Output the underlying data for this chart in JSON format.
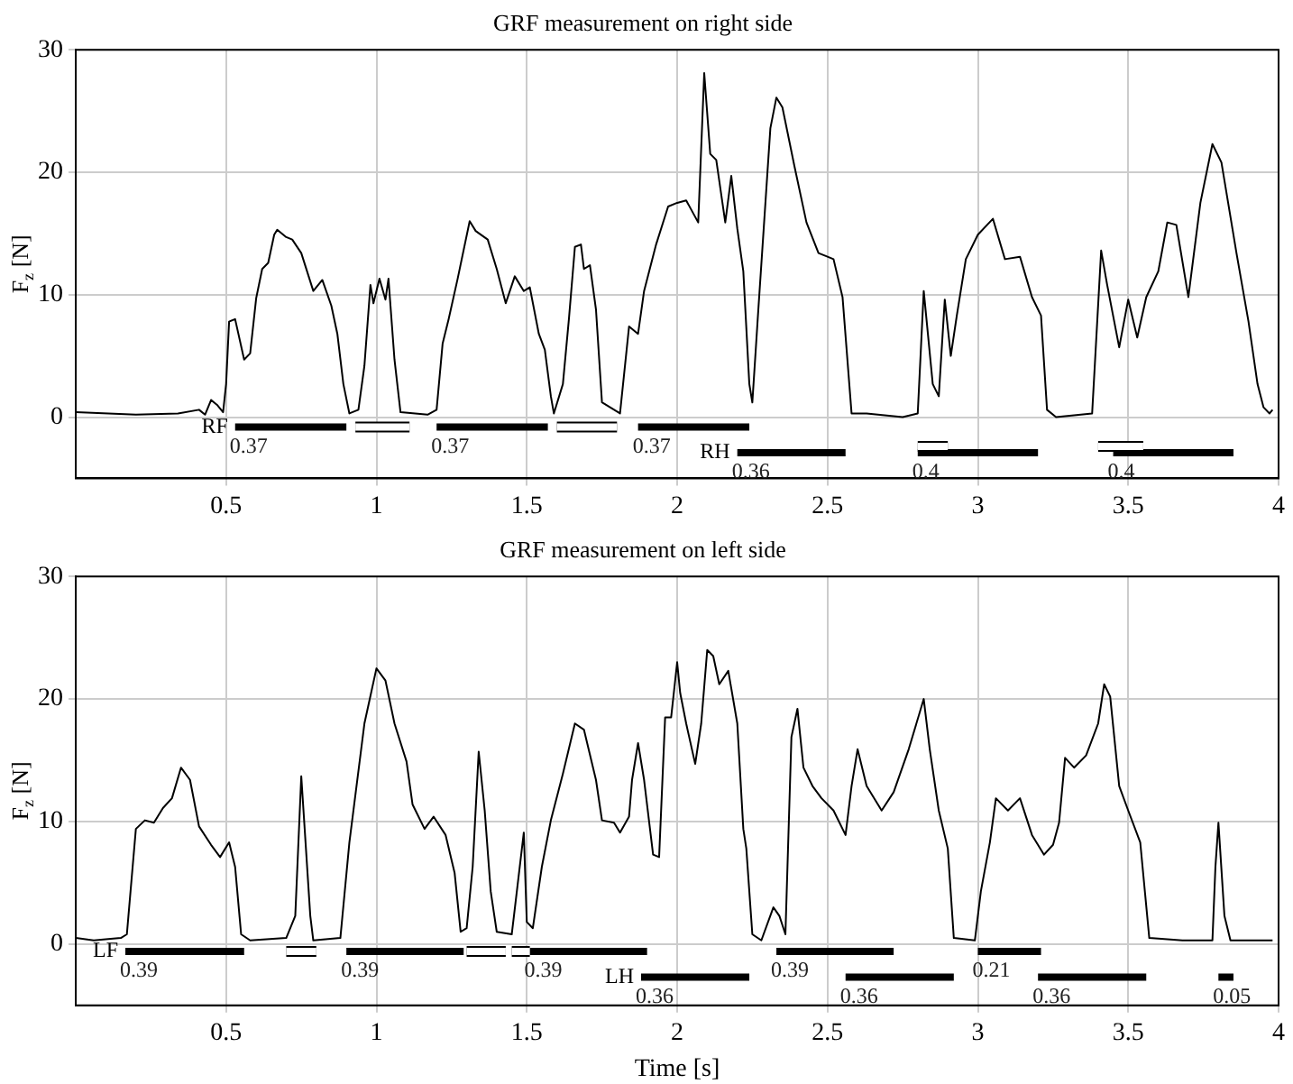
{
  "chart_data": [
    {
      "type": "line",
      "title": "GRF measurement on right side",
      "ylabel": "F$_{z}$ [N]",
      "xlim": [
        0,
        4
      ],
      "xticks": [
        0.5,
        1,
        1.5,
        2,
        2.5,
        3,
        3.5,
        4
      ],
      "ylim": [
        -5,
        30
      ],
      "yticks": [
        0,
        10,
        20,
        30
      ],
      "grid": true,
      "series": [
        {
          "color": "#000000",
          "x": [
            0.0,
            0.2,
            0.34,
            0.41,
            0.43,
            0.45,
            0.47,
            0.49,
            0.5,
            0.51,
            0.53,
            0.56,
            0.58,
            0.6,
            0.62,
            0.64,
            0.66,
            0.67,
            0.7,
            0.72,
            0.75,
            0.79,
            0.82,
            0.85,
            0.87,
            0.89,
            0.91,
            0.94,
            0.96,
            0.98,
            0.99,
            1.01,
            1.03,
            1.04,
            1.06,
            1.08,
            1.17,
            1.2,
            1.22,
            1.24,
            1.27,
            1.31,
            1.33,
            1.37,
            1.4,
            1.43,
            1.46,
            1.49,
            1.51,
            1.54,
            1.56,
            1.58,
            1.59,
            1.62,
            1.64,
            1.66,
            1.68,
            1.69,
            1.71,
            1.73,
            1.75,
            1.81,
            1.84,
            1.87,
            1.89,
            1.93,
            1.97,
            2.0,
            2.03,
            2.07,
            2.09,
            2.11,
            2.13,
            2.16,
            2.18,
            2.2,
            2.22,
            2.24,
            2.25,
            2.27,
            2.31,
            2.33,
            2.35,
            2.39,
            2.43,
            2.47,
            2.5,
            2.52,
            2.55,
            2.58,
            2.63,
            2.75,
            2.8,
            2.82,
            2.85,
            2.87,
            2.89,
            2.91,
            2.93,
            2.96,
            3.0,
            3.05,
            3.09,
            3.14,
            3.18,
            3.21,
            3.23,
            3.26,
            3.38,
            3.41,
            3.43,
            3.47,
            3.5,
            3.53,
            3.56,
            3.6,
            3.63,
            3.66,
            3.7,
            3.74,
            3.78,
            3.81,
            3.86,
            3.9,
            3.93,
            3.95,
            3.97,
            3.98
          ],
          "values": [
            0.4,
            0.2,
            0.3,
            0.6,
            0.2,
            1.4,
            1.0,
            0.4,
            2.7,
            7.8,
            8.0,
            4.7,
            5.2,
            9.7,
            12.1,
            12.6,
            14.9,
            15.3,
            14.7,
            14.5,
            13.4,
            10.3,
            11.2,
            9.1,
            6.8,
            2.7,
            0.3,
            0.6,
            4.2,
            10.8,
            9.3,
            11.3,
            9.6,
            11.3,
            4.7,
            0.4,
            0.2,
            0.6,
            6.0,
            8.0,
            11.3,
            16.0,
            15.2,
            14.5,
            12.1,
            9.3,
            11.5,
            10.3,
            10.6,
            6.8,
            5.5,
            1.7,
            0.3,
            2.7,
            8.0,
            13.9,
            14.1,
            12.1,
            12.4,
            8.8,
            1.2,
            0.3,
            7.4,
            6.8,
            10.3,
            14.1,
            17.2,
            17.5,
            17.7,
            15.9,
            28.1,
            21.5,
            21.0,
            15.9,
            19.7,
            15.4,
            11.9,
            2.7,
            1.2,
            8.8,
            23.6,
            26.1,
            25.3,
            20.5,
            15.9,
            13.4,
            13.1,
            12.9,
            9.8,
            0.3,
            0.3,
            0.0,
            0.3,
            10.3,
            2.7,
            1.7,
            9.6,
            5.0,
            8.3,
            12.9,
            14.9,
            16.2,
            12.9,
            13.1,
            9.8,
            8.3,
            0.6,
            0.0,
            0.3,
            13.6,
            10.8,
            5.7,
            9.6,
            6.5,
            9.8,
            11.9,
            15.9,
            15.7,
            9.8,
            17.5,
            22.3,
            20.8,
            13.4,
            7.8,
            2.7,
            0.8,
            0.3,
            0.6
          ]
        },
        {
          "name": "RF",
          "color": "#000000",
          "x": [
            0.53,
            0.9
          ],
          "values": [
            -0.8,
            -0.8
          ]
        },
        {
          "color": "#ffffff",
          "x": [
            0.93,
            1.11
          ],
          "values": [
            -0.8,
            -0.8
          ]
        },
        {
          "color": "#000000",
          "x": [
            1.2,
            1.57
          ],
          "values": [
            -0.8,
            -0.8
          ]
        },
        {
          "color": "#ffffff",
          "x": [
            1.6,
            1.8
          ],
          "values": [
            -0.8,
            -0.8
          ]
        },
        {
          "color": "#000000",
          "x": [
            1.87,
            2.24
          ],
          "values": [
            -0.8,
            -0.8
          ]
        },
        {
          "name": "RH",
          "color": "#000000",
          "x": [
            2.2,
            2.56
          ],
          "values": [
            -2.9,
            -2.9
          ]
        },
        {
          "color": "#ffffff",
          "x": [
            2.8,
            2.9
          ],
          "values": [
            -2.4,
            -2.4
          ]
        },
        {
          "color": "#000000",
          "x": [
            2.8,
            3.2
          ],
          "values": [
            -2.9,
            -2.9
          ]
        },
        {
          "color": "#ffffff",
          "x": [
            3.4,
            3.55
          ],
          "values": [
            -2.4,
            -2.4
          ]
        },
        {
          "color": "#000000",
          "x": [
            3.45,
            3.85
          ],
          "values": [
            -2.9,
            -2.9
          ]
        }
      ],
      "annotations": [
        {
          "text": "0.37",
          "x": 0.53,
          "y": -0.8
        },
        {
          "text": "0.37",
          "x": 1.2,
          "y": -0.8
        },
        {
          "text": "0.37",
          "x": 1.87,
          "y": -0.8
        },
        {
          "text": "0.36",
          "x": 2.2,
          "y": -2.9
        },
        {
          "text": "0.4",
          "x": 2.8,
          "y": -2.9
        },
        {
          "text": "0.4",
          "x": 3.45,
          "y": -2.9
        }
      ]
    },
    {
      "type": "line",
      "title": "GRF measurement on left side",
      "xlabel": "Time [s]",
      "ylabel": "F$_{z}$ [N]",
      "xlim": [
        0,
        4
      ],
      "xticks": [
        0.5,
        1,
        1.5,
        2,
        2.5,
        3,
        3.5,
        4
      ],
      "ylim": [
        -5,
        30
      ],
      "yticks": [
        0,
        10,
        20,
        30
      ],
      "grid": true,
      "series": [
        {
          "color": "#000000",
          "x": [
            0.0,
            0.06,
            0.1,
            0.15,
            0.17,
            0.2,
            0.23,
            0.26,
            0.29,
            0.32,
            0.35,
            0.38,
            0.41,
            0.45,
            0.48,
            0.51,
            0.53,
            0.55,
            0.58,
            0.7,
            0.73,
            0.75,
            0.78,
            0.79,
            0.88,
            0.91,
            0.96,
            1.0,
            1.03,
            1.06,
            1.1,
            1.12,
            1.16,
            1.19,
            1.23,
            1.26,
            1.28,
            1.3,
            1.32,
            1.34,
            1.36,
            1.38,
            1.4,
            1.45,
            1.49,
            1.5,
            1.52,
            1.55,
            1.58,
            1.62,
            1.66,
            1.69,
            1.73,
            1.75,
            1.79,
            1.81,
            1.84,
            1.85,
            1.87,
            1.89,
            1.92,
            1.94,
            1.96,
            1.98,
            2.0,
            2.01,
            2.03,
            2.06,
            2.08,
            2.1,
            2.12,
            2.14,
            2.17,
            2.2,
            2.22,
            2.23,
            2.25,
            2.28,
            2.32,
            2.34,
            2.36,
            2.38,
            2.4,
            2.42,
            2.45,
            2.48,
            2.52,
            2.56,
            2.58,
            2.6,
            2.63,
            2.68,
            2.72,
            2.77,
            2.82,
            2.84,
            2.87,
            2.9,
            2.92,
            2.99,
            3.01,
            3.04,
            3.06,
            3.1,
            3.14,
            3.18,
            3.22,
            3.25,
            3.27,
            3.29,
            3.32,
            3.36,
            3.4,
            3.42,
            3.44,
            3.47,
            3.5,
            3.54,
            3.57,
            3.68,
            3.78,
            3.79,
            3.8,
            3.82,
            3.84,
            3.98
          ],
          "values": [
            0.5,
            0.3,
            0.4,
            0.5,
            0.8,
            9.4,
            10.1,
            9.9,
            11.1,
            11.9,
            14.4,
            13.4,
            9.6,
            8.1,
            7.1,
            8.3,
            6.3,
            0.8,
            0.3,
            0.5,
            2.3,
            13.7,
            2.3,
            0.3,
            0.5,
            8.3,
            18.0,
            22.5,
            21.5,
            18.0,
            14.9,
            11.4,
            9.4,
            10.4,
            8.9,
            5.8,
            1.0,
            1.3,
            6.3,
            15.7,
            10.9,
            4.3,
            1.0,
            0.8,
            9.1,
            1.8,
            1.3,
            6.3,
            10.1,
            13.9,
            18.0,
            17.5,
            13.4,
            10.1,
            9.9,
            9.1,
            10.4,
            13.4,
            16.4,
            13.4,
            7.3,
            7.1,
            18.5,
            18.5,
            23.0,
            20.5,
            18.0,
            14.7,
            18.0,
            24.0,
            23.5,
            21.2,
            22.3,
            18.0,
            9.4,
            7.8,
            0.8,
            0.3,
            3.0,
            2.3,
            0.8,
            16.9,
            19.2,
            14.4,
            12.9,
            11.9,
            10.9,
            8.9,
            12.9,
            15.9,
            12.9,
            10.9,
            12.4,
            15.9,
            20.0,
            15.9,
            10.9,
            7.8,
            0.5,
            0.3,
            4.3,
            8.3,
            11.9,
            10.9,
            11.9,
            8.9,
            7.3,
            8.1,
            9.9,
            15.2,
            14.4,
            15.4,
            18.0,
            21.2,
            20.2,
            12.9,
            10.9,
            8.3,
            0.5,
            0.3,
            0.3,
            6.3,
            9.9,
            2.3,
            0.3,
            0.3
          ]
        },
        {
          "name": "LF",
          "color": "#000000",
          "x": [
            0.165,
            0.56
          ],
          "values": [
            -0.6,
            -0.6
          ]
        },
        {
          "color": "#ffffff",
          "x": [
            0.7,
            0.8
          ],
          "values": [
            -0.6,
            -0.6
          ]
        },
        {
          "color": "#000000",
          "x": [
            0.9,
            1.29
          ],
          "values": [
            -0.6,
            -0.6
          ]
        },
        {
          "color": "#ffffff",
          "x": [
            1.3,
            1.43
          ],
          "values": [
            -0.6,
            -0.6
          ]
        },
        {
          "color": "#ffffff",
          "x": [
            1.45,
            1.51
          ],
          "values": [
            -0.6,
            -0.6
          ]
        },
        {
          "color": "#000000",
          "x": [
            1.51,
            1.9
          ],
          "values": [
            -0.6,
            -0.6
          ]
        },
        {
          "color": "#000000",
          "x": [
            2.33,
            2.72
          ],
          "values": [
            -0.6,
            -0.6
          ]
        },
        {
          "color": "#000000",
          "x": [
            3.0,
            3.21
          ],
          "values": [
            -0.6,
            -0.6
          ]
        },
        {
          "name": "LH",
          "color": "#000000",
          "x": [
            1.88,
            2.24
          ],
          "values": [
            -2.7,
            -2.7
          ]
        },
        {
          "color": "#000000",
          "x": [
            2.56,
            2.92
          ],
          "values": [
            -2.7,
            -2.7
          ]
        },
        {
          "color": "#000000",
          "x": [
            3.2,
            3.56
          ],
          "values": [
            -2.7,
            -2.7
          ]
        },
        {
          "color": "#000000",
          "x": [
            3.8,
            3.85
          ],
          "values": [
            -2.7,
            -2.7
          ]
        }
      ],
      "annotations": [
        {
          "text": "0.39",
          "x": 0.165,
          "y": -0.6
        },
        {
          "text": "0.39",
          "x": 0.9,
          "y": -0.6
        },
        {
          "text": "0.39",
          "x": 1.51,
          "y": -0.6
        },
        {
          "text": "0.39",
          "x": 2.33,
          "y": -0.6
        },
        {
          "text": "0.21",
          "x": 3.0,
          "y": -0.6
        },
        {
          "text": "0.36",
          "x": 1.88,
          "y": -2.7
        },
        {
          "text": "0.36",
          "x": 2.56,
          "y": -2.7
        },
        {
          "text": "0.36",
          "x": 3.2,
          "y": -2.7
        },
        {
          "text": "0.05",
          "x": 3.8,
          "y": -2.7
        }
      ]
    }
  ]
}
